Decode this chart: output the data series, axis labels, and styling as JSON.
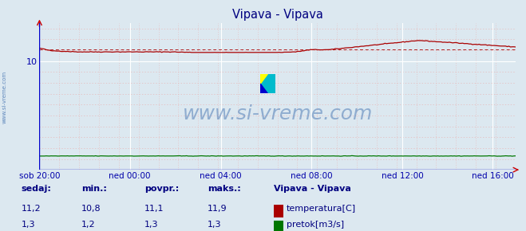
{
  "title": "Vipava - Vipava",
  "bg_color": "#dce8f0",
  "plot_bg_color": "#dce8f0",
  "grid_color_major": "#ffffff",
  "grid_color_minor": "#e8b8b8",
  "x_labels": [
    "sob 20:00",
    "ned 00:00",
    "ned 04:00",
    "ned 08:00",
    "ned 12:00",
    "ned 16:00"
  ],
  "x_ticks_norm": [
    0.0,
    0.19,
    0.381,
    0.571,
    0.762,
    0.952
  ],
  "y_min": 0,
  "y_max": 13.5,
  "y_tick_val": 10,
  "avg_line_value": 11.1,
  "temp_color": "#aa0000",
  "flow_color": "#007700",
  "watermark_text": "www.si-vreme.com",
  "watermark_color": "#3366aa",
  "watermark_alpha": 0.45,
  "sidebar_text": "www.si-vreme.com",
  "sidebar_color": "#3366aa",
  "title_color": "#000080",
  "label_color": "#0000aa",
  "stats_color": "#000080",
  "n_points": 289,
  "temp_min": 10.8,
  "temp_max": 11.9,
  "temp_avg": 11.1,
  "temp_now": 11.2,
  "flow_min": 1.2,
  "flow_max": 1.3,
  "flow_avg": 1.3,
  "flow_now": 1.3
}
